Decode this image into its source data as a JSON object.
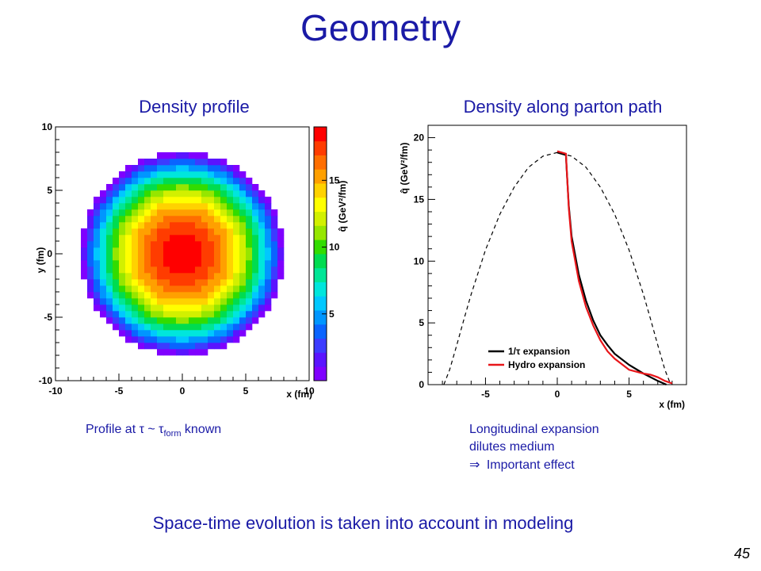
{
  "slide": {
    "title": "Geometry",
    "left_panel_title": "Density profile",
    "right_panel_title": "Density along parton path",
    "left_caption": {
      "prefix": "Profile at ",
      "tau": "τ",
      "tilde": " ~ ",
      "tau2": "τ",
      "sub": "form",
      "suffix": " known"
    },
    "right_caption": {
      "line1": "Longitudinal expansion",
      "line2": "dilutes medium",
      "line3_arrow": "⇒",
      "line3": " Important effect"
    },
    "footer": "Space-time evolution is taken into account in modeling",
    "page_number": "45"
  },
  "chart_data": [
    {
      "type": "heatmap",
      "title": "",
      "xlabel": "x (fm)",
      "ylabel": "y (fm)",
      "colorbar_label": "q̂ (GeV²/fm)",
      "xlim": [
        -10,
        10
      ],
      "ylim": [
        -10,
        10
      ],
      "x_ticks": [
        -10,
        -5,
        0,
        5,
        10
      ],
      "y_ticks": [
        -10,
        -5,
        0,
        5,
        10
      ],
      "colorbar_ticks": [
        5,
        10,
        15
      ],
      "zlim": [
        0,
        19
      ],
      "center_value": 18.8,
      "radius_fm": 8,
      "bin_width_fm": 0.5,
      "colors": [
        "#7f00ff",
        "#5a14ff",
        "#3c3cff",
        "#0a64ff",
        "#0096ff",
        "#00c8ff",
        "#00e6dc",
        "#00e696",
        "#00dc50",
        "#32dc00",
        "#96e600",
        "#d2f000",
        "#ffff00",
        "#ffd200",
        "#ffa000",
        "#ff6e00",
        "#ff3c00",
        "#ff0000"
      ]
    },
    {
      "type": "line",
      "title": "",
      "xlabel": "x (fm)",
      "ylabel": "q̂ (GeV²/fm)",
      "xlim": [
        -9,
        9
      ],
      "ylim": [
        0,
        21
      ],
      "x_ticks": [
        -5,
        0,
        5
      ],
      "y_ticks": [
        0,
        5,
        10,
        15,
        20
      ],
      "legend_position": "bottom-left",
      "series": [
        {
          "name": "",
          "style": "dashed",
          "color": "#000000",
          "x": [
            -7.9,
            -7.5,
            -7,
            -6.5,
            -6,
            -5,
            -4,
            -3,
            -2,
            -1,
            0,
            1,
            2,
            3,
            4,
            5,
            6,
            6.5,
            7,
            7.5,
            7.9
          ],
          "y": [
            0,
            1.2,
            3.2,
            5.3,
            7.3,
            10.9,
            13.8,
            16.0,
            17.6,
            18.5,
            18.8,
            18.5,
            17.6,
            16.0,
            13.8,
            10.9,
            7.3,
            5.3,
            3.2,
            1.2,
            0
          ]
        },
        {
          "name": "1/τ expansion",
          "style": "solid",
          "color": "#000000",
          "x": [
            0,
            0.6,
            0.65,
            0.8,
            1,
            1.5,
            2,
            2.5,
            3,
            3.5,
            4,
            5,
            6,
            7,
            7.6
          ],
          "y": [
            18.8,
            18.6,
            17.5,
            14.5,
            12.0,
            8.9,
            6.8,
            5.2,
            4.0,
            3.2,
            2.5,
            1.6,
            0.9,
            0.3,
            0
          ]
        },
        {
          "name": "Hydro expansion",
          "style": "solid",
          "color": "#e8161a",
          "x": [
            0,
            0.6,
            0.65,
            0.8,
            1,
            1.5,
            2,
            2.5,
            3,
            3.5,
            4,
            5,
            6,
            6.5,
            7,
            7.5,
            8
          ],
          "y": [
            18.9,
            18.7,
            17.6,
            14.3,
            11.6,
            8.4,
            6.3,
            4.8,
            3.6,
            2.7,
            2.1,
            1.2,
            0.9,
            0.8,
            0.6,
            0.3,
            0.1
          ]
        }
      ]
    }
  ]
}
